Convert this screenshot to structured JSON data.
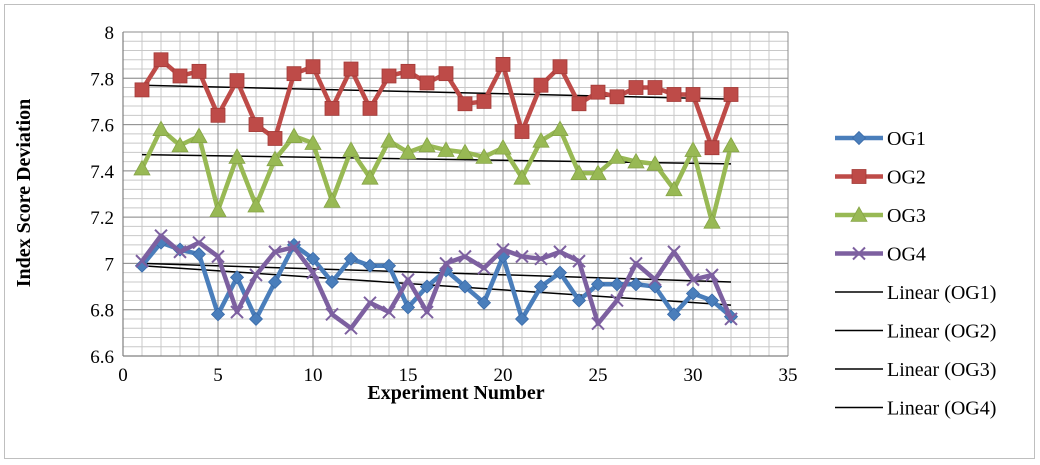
{
  "chart_data": {
    "type": "line",
    "title": "",
    "xlabel": "Experiment Number",
    "ylabel": "Index Score Deviation",
    "xlim": [
      0,
      35
    ],
    "ylim": [
      6.6,
      8
    ],
    "x_ticks": [
      "0",
      "5",
      "10",
      "15",
      "20",
      "25",
      "30",
      "35"
    ],
    "y_ticks": [
      "6.6",
      "6.8",
      "7",
      "7.2",
      "7.4",
      "7.6",
      "7.8",
      "8"
    ],
    "grid": true,
    "legend_position": "right",
    "x": [
      1,
      2,
      3,
      4,
      5,
      6,
      7,
      8,
      9,
      10,
      11,
      12,
      13,
      14,
      15,
      16,
      17,
      18,
      19,
      20,
      21,
      22,
      23,
      24,
      25,
      26,
      27,
      28,
      29,
      30,
      31,
      32
    ],
    "series": [
      {
        "name": "OG1",
        "color": "#4a7ebb",
        "marker": "diamond",
        "values": [
          6.99,
          7.09,
          7.06,
          7.04,
          6.78,
          6.94,
          6.76,
          6.92,
          7.08,
          7.02,
          6.92,
          7.02,
          6.99,
          6.99,
          6.81,
          6.9,
          6.97,
          6.9,
          6.83,
          7.03,
          6.76,
          6.9,
          6.96,
          6.84,
          6.91,
          6.91,
          6.91,
          6.9,
          6.78,
          6.87,
          6.84,
          6.77
        ]
      },
      {
        "name": "OG2",
        "color": "#be4b48",
        "marker": "square",
        "values": [
          7.75,
          7.88,
          7.81,
          7.83,
          7.64,
          7.79,
          7.6,
          7.54,
          7.82,
          7.85,
          7.67,
          7.84,
          7.67,
          7.81,
          7.83,
          7.78,
          7.82,
          7.69,
          7.7,
          7.86,
          7.57,
          7.77,
          7.85,
          7.69,
          7.74,
          7.72,
          7.76,
          7.76,
          7.73,
          7.73,
          7.5,
          7.73
        ]
      },
      {
        "name": "OG3",
        "color": "#98b954",
        "marker": "triangle",
        "values": [
          7.41,
          7.58,
          7.51,
          7.55,
          7.23,
          7.46,
          7.25,
          7.45,
          7.55,
          7.52,
          7.27,
          7.49,
          7.37,
          7.53,
          7.48,
          7.51,
          7.49,
          7.48,
          7.46,
          7.5,
          7.37,
          7.53,
          7.58,
          7.39,
          7.39,
          7.46,
          7.44,
          7.43,
          7.32,
          7.49,
          7.18,
          7.51
        ]
      },
      {
        "name": "OG4",
        "color": "#7d60a0",
        "marker": "x",
        "values": [
          7.01,
          7.12,
          7.05,
          7.09,
          7.03,
          6.79,
          6.95,
          7.05,
          7.07,
          6.96,
          6.78,
          6.72,
          6.83,
          6.79,
          6.93,
          6.79,
          7.0,
          7.03,
          6.98,
          7.06,
          7.03,
          7.02,
          7.05,
          7.01,
          6.74,
          6.84,
          7.0,
          6.93,
          7.05,
          6.93,
          6.95,
          6.76
        ]
      }
    ],
    "trendlines": [
      {
        "name": "Linear (OG1)",
        "color": "#000000",
        "y_start": 6.99,
        "y_end": 6.82
      },
      {
        "name": "Linear (OG2)",
        "color": "#000000",
        "y_start": 7.77,
        "y_end": 7.71
      },
      {
        "name": "Linear (OG3)",
        "color": "#000000",
        "y_start": 7.47,
        "y_end": 7.43
      },
      {
        "name": "Linear (OG4)",
        "color": "#000000",
        "y_start": 7.0,
        "y_end": 6.92
      }
    ]
  }
}
